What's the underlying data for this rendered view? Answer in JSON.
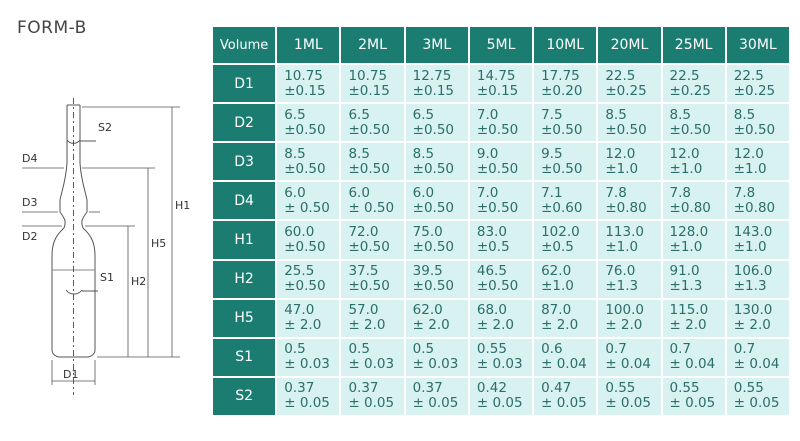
{
  "form_title": "FORM-B",
  "diagram_labels": {
    "S2": "S2",
    "D4": "D4",
    "D3": "D3",
    "D2": "D2",
    "S1": "S1",
    "H2": "H2",
    "H5": "H5",
    "H1": "H1",
    "D1": "D1"
  },
  "table": {
    "corner": "Volume",
    "columns": [
      "1ML",
      "2ML",
      "3ML",
      "5ML",
      "10ML",
      "20ML",
      "25ML",
      "30ML"
    ],
    "rows": [
      {
        "label": "D1",
        "cells": [
          {
            "nom": "10.75",
            "tol": "±0.15"
          },
          {
            "nom": "10.75",
            "tol": "±0.15"
          },
          {
            "nom": "12.75",
            "tol": "±0.15"
          },
          {
            "nom": "14.75",
            "tol": "±0.15"
          },
          {
            "nom": "17.75",
            "tol": "±0.20"
          },
          {
            "nom": "22.5",
            "tol": "±0.25"
          },
          {
            "nom": "22.5",
            "tol": "±0.25"
          },
          {
            "nom": "22.5",
            "tol": "±0.25"
          }
        ]
      },
      {
        "label": "D2",
        "cells": [
          {
            "nom": "6.5",
            "tol": "±0.50"
          },
          {
            "nom": "6.5",
            "tol": "±0.50"
          },
          {
            "nom": "6.5",
            "tol": "±0.50"
          },
          {
            "nom": "7.0",
            "tol": "±0.50"
          },
          {
            "nom": "7.5",
            "tol": "±0.50"
          },
          {
            "nom": "8.5",
            "tol": "±0.50"
          },
          {
            "nom": "8.5",
            "tol": "±0.50"
          },
          {
            "nom": "8.5",
            "tol": "±0.50"
          }
        ]
      },
      {
        "label": "D3",
        "cells": [
          {
            "nom": "8.5",
            "tol": "±0.50"
          },
          {
            "nom": "8.5",
            "tol": "±0.50"
          },
          {
            "nom": "8.5",
            "tol": "±0.50"
          },
          {
            "nom": "9.0",
            "tol": "±0.50"
          },
          {
            "nom": "9.5",
            "tol": "±0.50"
          },
          {
            "nom": "12.0",
            "tol": "±1.0"
          },
          {
            "nom": "12.0",
            "tol": "±1.0"
          },
          {
            "nom": "12.0",
            "tol": "±1.0"
          }
        ]
      },
      {
        "label": "D4",
        "cells": [
          {
            "nom": "6.0",
            "tol": "± 0.50"
          },
          {
            "nom": "6.0",
            "tol": "± 0.50"
          },
          {
            "nom": "6.0",
            "tol": "±0.50"
          },
          {
            "nom": "7.0",
            "tol": "±0.50"
          },
          {
            "nom": "7.1",
            "tol": "±0.60"
          },
          {
            "nom": "7.8",
            "tol": "±0.80"
          },
          {
            "nom": "7.8",
            "tol": "±0.80"
          },
          {
            "nom": "7.8",
            "tol": "±0.80"
          }
        ]
      },
      {
        "label": "H1",
        "cells": [
          {
            "nom": "60.0",
            "tol": "±0.50"
          },
          {
            "nom": "72.0",
            "tol": "±0.50"
          },
          {
            "nom": "75.0",
            "tol": "±0.50"
          },
          {
            "nom": "83.0",
            "tol": "±0.5"
          },
          {
            "nom": "102.0",
            "tol": "±0.5"
          },
          {
            "nom": "113.0",
            "tol": "±1.0"
          },
          {
            "nom": "128.0",
            "tol": "±1.0"
          },
          {
            "nom": "143.0",
            "tol": "±1.0"
          }
        ]
      },
      {
        "label": "H2",
        "cells": [
          {
            "nom": "25.5",
            "tol": "±0.50"
          },
          {
            "nom": "37.5",
            "tol": "±0.50"
          },
          {
            "nom": "39.5",
            "tol": "±0.50"
          },
          {
            "nom": "46.5",
            "tol": "±0.50"
          },
          {
            "nom": "62.0",
            "tol": "±1.0"
          },
          {
            "nom": "76.0",
            "tol": "±1.3"
          },
          {
            "nom": "91.0",
            "tol": "±1.3"
          },
          {
            "nom": "106.0",
            "tol": "±1.3"
          }
        ]
      },
      {
        "label": "H5",
        "cells": [
          {
            "nom": "47.0",
            "tol": "± 2.0"
          },
          {
            "nom": "57.0",
            "tol": "± 2.0"
          },
          {
            "nom": "62.0",
            "tol": "± 2.0"
          },
          {
            "nom": "68.0",
            "tol": "± 2.0"
          },
          {
            "nom": "87.0",
            "tol": "± 2.0"
          },
          {
            "nom": "100.0",
            "tol": "± 2.0"
          },
          {
            "nom": "115.0",
            "tol": "± 2.0"
          },
          {
            "nom": "130.0",
            "tol": "± 2.0"
          }
        ]
      },
      {
        "label": "S1",
        "cells": [
          {
            "nom": "0.5",
            "tol": "± 0.03"
          },
          {
            "nom": "0.5",
            "tol": "± 0.03"
          },
          {
            "nom": "0.5",
            "tol": "± 0.03"
          },
          {
            "nom": "0.55",
            "tol": "± 0.03"
          },
          {
            "nom": "0.6",
            "tol": "± 0.04"
          },
          {
            "nom": "0.7",
            "tol": "± 0.04"
          },
          {
            "nom": "0.7",
            "tol": "± 0.04"
          },
          {
            "nom": "0.7",
            "tol": "± 0.04"
          }
        ]
      },
      {
        "label": "S2",
        "cells": [
          {
            "nom": "0.37",
            "tol": "± 0.05"
          },
          {
            "nom": "0.37",
            "tol": "± 0.05"
          },
          {
            "nom": "0.37",
            "tol": "± 0.05"
          },
          {
            "nom": "0.42",
            "tol": "± 0.05"
          },
          {
            "nom": "0.47",
            "tol": "± 0.05"
          },
          {
            "nom": "0.55",
            "tol": "± 0.05"
          },
          {
            "nom": "0.55",
            "tol": "± 0.05"
          },
          {
            "nom": "0.55",
            "tol": "± 0.05"
          }
        ]
      }
    ]
  }
}
